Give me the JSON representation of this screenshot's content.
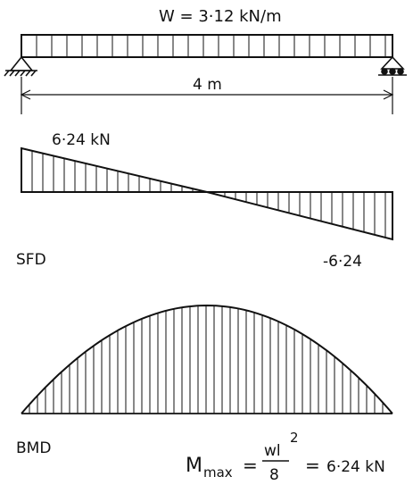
{
  "load_label": "W = 3·12 kN/m",
  "span_label": "4 m",
  "sfd": {
    "label": "SFD",
    "left_value_label": "6·24 kN",
    "right_value_label": "-6·24",
    "left_shear_kN": 6.24,
    "right_shear_kN": -6.24
  },
  "bmd": {
    "label": "BMD",
    "mmax_symbol": "M",
    "mmax_subscript": "max",
    "equals": "=",
    "formula_numerator": "wl",
    "formula_exponent": "2",
    "formula_denominator": "8",
    "equals2": "=",
    "mmax_value_label": "6·24 kN",
    "mmax_kNm": 6.24
  },
  "beam": {
    "span_m": 4,
    "udl_kN_per_m": 3.12,
    "left_support": "pinned",
    "right_support": "roller"
  }
}
